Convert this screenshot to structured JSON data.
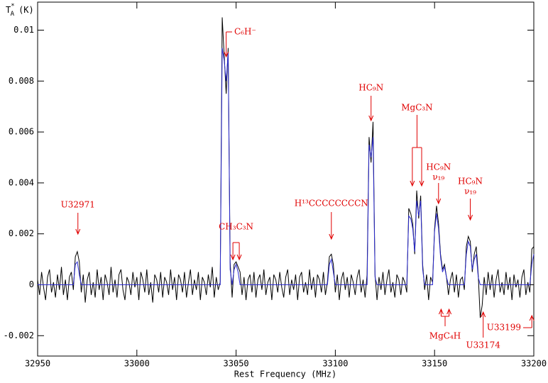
{
  "chart_data": {
    "type": "line",
    "xlabel": "Rest Frequency (MHz)",
    "ylabel": {
      "base": "T",
      "sub": "A",
      "sup": "*",
      "unit": "(K)"
    },
    "xlim": [
      32950,
      33200
    ],
    "xticks": [
      32950,
      33000,
      33050,
      33100,
      33150,
      33200
    ],
    "ylim": [
      -0.0028,
      0.0111
    ],
    "yticks": [
      -0.002,
      0,
      0.002,
      0.004,
      0.006,
      0.008,
      0.01
    ],
    "annotation_color": "#e00000",
    "x": [
      32950,
      32951,
      32952,
      32953,
      32954,
      32955,
      32956,
      32957,
      32958,
      32959,
      32960,
      32961,
      32962,
      32963,
      32964,
      32965,
      32966,
      32967,
      32968,
      32969,
      32970,
      32971,
      32972,
      32973,
      32974,
      32975,
      32976,
      32977,
      32978,
      32979,
      32980,
      32981,
      32982,
      32983,
      32984,
      32985,
      32986,
      32987,
      32988,
      32989,
      32990,
      32991,
      32992,
      32993,
      32994,
      32995,
      32996,
      32997,
      32998,
      32999,
      33000,
      33001,
      33002,
      33003,
      33004,
      33005,
      33006,
      33007,
      33008,
      33009,
      33010,
      33011,
      33012,
      33013,
      33014,
      33015,
      33016,
      33017,
      33018,
      33019,
      33020,
      33021,
      33022,
      33023,
      33024,
      33025,
      33026,
      33027,
      33028,
      33029,
      33030,
      33031,
      33032,
      33033,
      33034,
      33035,
      33036,
      33037,
      33038,
      33039,
      33040,
      33041,
      33042,
      33043,
      33044,
      33045,
      33046,
      33047,
      33048,
      33049,
      33050,
      33051,
      33052,
      33053,
      33054,
      33055,
      33056,
      33057,
      33058,
      33059,
      33060,
      33061,
      33062,
      33063,
      33064,
      33065,
      33066,
      33067,
      33068,
      33069,
      33070,
      33071,
      33072,
      33073,
      33074,
      33075,
      33076,
      33077,
      33078,
      33079,
      33080,
      33081,
      33082,
      33083,
      33084,
      33085,
      33086,
      33087,
      33088,
      33089,
      33090,
      33091,
      33092,
      33093,
      33094,
      33095,
      33096,
      33097,
      33098,
      33099,
      33100,
      33101,
      33102,
      33103,
      33104,
      33105,
      33106,
      33107,
      33108,
      33109,
      33110,
      33111,
      33112,
      33113,
      33114,
      33115,
      33116,
      33117,
      33118,
      33119,
      33120,
      33121,
      33122,
      33123,
      33124,
      33125,
      33126,
      33127,
      33128,
      33129,
      33130,
      33131,
      33132,
      33133,
      33134,
      33135,
      33136,
      33137,
      33138,
      33139,
      33140,
      33141,
      33142,
      33143,
      33144,
      33145,
      33146,
      33147,
      33148,
      33149,
      33150,
      33151,
      33152,
      33153,
      33154,
      33155,
      33156,
      33157,
      33158,
      33159,
      33160,
      33161,
      33162,
      33163,
      33164,
      33165,
      33166,
      33167,
      33168,
      33169,
      33170,
      33171,
      33172,
      33173,
      33174,
      33175,
      33176,
      33177,
      33178,
      33179,
      33180,
      33181,
      33182,
      33183,
      33184,
      33185,
      33186,
      33187,
      33188,
      33189,
      33190,
      33191,
      33192,
      33193,
      33194,
      33195,
      33196,
      33197,
      33198,
      33199,
      33200
    ],
    "series": [
      {
        "color": "#000000",
        "values": [
          0.0002,
          -0.0004,
          0.0005,
          -0.0001,
          -0.0006,
          0.0003,
          0.0006,
          -0.0003,
          0.0001,
          -0.0005,
          0.0004,
          -0.0002,
          0.0007,
          -0.0004,
          0.0002,
          -0.0006,
          0.0003,
          0.0005,
          -0.0002,
          0.0011,
          0.0013,
          0.0009,
          -0.0003,
          0.0004,
          -0.0007,
          0.0002,
          0.0005,
          -0.0004,
          0.0001,
          -0.0005,
          0.0006,
          -0.0002,
          0.0003,
          -0.0006,
          0.0004,
          0.0001,
          -0.0004,
          0.0007,
          -0.0003,
          0.0002,
          -0.0005,
          0.0004,
          0.0006,
          -0.0002,
          -0.0006,
          0.0003,
          0.0001,
          -0.0004,
          0.0005,
          -0.0001,
          0.0003,
          -0.0006,
          0.0005,
          0.0002,
          -0.0003,
          0.0006,
          -0.0004,
          0.0001,
          -0.0007,
          0.0004,
          0.0002,
          -0.0003,
          0.0005,
          -0.0005,
          0.0003,
          0.0001,
          -0.0004,
          0.0006,
          -0.0002,
          0.0003,
          -0.0006,
          0.0004,
          0.0002,
          -0.0003,
          0.0005,
          -0.0005,
          0.0001,
          0.0006,
          -0.0004,
          0.0002,
          -0.0002,
          0.0005,
          -0.0006,
          0.0003,
          0.0001,
          -0.0004,
          0.0004,
          -0.0001,
          0.0007,
          -0.0005,
          0.0003,
          -0.0002,
          0.0001,
          0.0105,
          0.009,
          0.0075,
          0.0093,
          0.0009,
          -0.0005,
          0.0008,
          0.0009,
          0.0007,
          0.0005,
          -0.0004,
          0.0003,
          -0.0006,
          0.0002,
          0.0004,
          -0.0003,
          0.0005,
          -0.0005,
          0.0002,
          0.0004,
          -0.0002,
          0.0006,
          -0.0004,
          0.0001,
          0.0003,
          -0.0006,
          0.0004,
          0.0002,
          -0.0003,
          0.0005,
          -0.0001,
          -0.0005,
          0.0003,
          0.0006,
          -0.0004,
          0.0002,
          -0.0002,
          0.0004,
          -0.0006,
          0.0003,
          0.0005,
          -0.0003,
          0.0001,
          -0.0004,
          0.0006,
          -0.0002,
          0.0003,
          -0.0005,
          0.0004,
          0.0002,
          -0.0003,
          0.0005,
          -0.0004,
          0.0001,
          0.0011,
          0.0012,
          0.0008,
          -0.0003,
          0.0004,
          -0.0006,
          0.0002,
          0.0005,
          -0.0002,
          0.0003,
          -0.0005,
          0.0004,
          0.0001,
          -0.0004,
          0.0003,
          0.0006,
          -0.0003,
          0.0002,
          -0.0005,
          0.0004,
          0.0058,
          0.0048,
          0.0064,
          0.0004,
          -0.0006,
          0.0003,
          -0.0002,
          0.0005,
          -0.0004,
          0.0002,
          0.0006,
          -0.0003,
          0.0001,
          -0.0005,
          0.0004,
          0.0002,
          -0.0004,
          0.0003,
          0.0001,
          -0.0003,
          0.003,
          0.0028,
          0.0024,
          0.0012,
          0.0037,
          0.0026,
          0.0035,
          0.0008,
          -0.0002,
          0.0004,
          -0.0006,
          0.0003,
          0.0001,
          0.0022,
          0.0031,
          0.0024,
          0.0012,
          0.0006,
          0.0008,
          0.0003,
          -0.0004,
          0.0002,
          0.0005,
          -0.0003,
          0.0004,
          -0.0005,
          0.0002,
          0.0003,
          -0.0002,
          0.0015,
          0.0019,
          0.0017,
          0.0005,
          0.0012,
          0.0015,
          0.0004,
          -0.0013,
          -0.0008,
          0.0003,
          -0.0004,
          0.0005,
          -0.0002,
          0.0004,
          -0.0005,
          0.0002,
          0.0006,
          -0.0003,
          0.0001,
          -0.0004,
          0.0005,
          -0.0002,
          0.0003,
          -0.0006,
          0.0004,
          -0.0001,
          0.0002,
          -0.0005,
          0.0003,
          0.0006,
          -0.0004,
          0.0001,
          -0.0003,
          0.0014,
          0.0015
        ]
      },
      {
        "color": "#2b2bd0",
        "values": [
          0,
          0,
          0,
          0,
          0,
          0,
          0,
          0,
          0,
          0,
          0,
          0,
          0,
          0,
          0,
          0,
          0,
          0,
          0,
          0.0008,
          0.0009,
          0.0004,
          0,
          0,
          0,
          0,
          0,
          0,
          0,
          0,
          0,
          0,
          0,
          0,
          0,
          0,
          0,
          0,
          0,
          0,
          0,
          0,
          0,
          0,
          0,
          0,
          0,
          0,
          0,
          0,
          0,
          0,
          0,
          0,
          0,
          0,
          0,
          0,
          0,
          0,
          0,
          0,
          0,
          0,
          0,
          0,
          0,
          0,
          0,
          0,
          0,
          0,
          0,
          0,
          0,
          0,
          0,
          0,
          0,
          0,
          0,
          0,
          0,
          0,
          0,
          0,
          0,
          0,
          0,
          0,
          0,
          0,
          0,
          0.0093,
          0.0088,
          0.008,
          0.0091,
          0.0006,
          0,
          0.0006,
          0.0008,
          0.0005,
          0,
          0,
          0,
          0,
          0,
          0,
          0,
          0,
          0,
          0,
          0,
          0,
          0,
          0,
          0,
          0,
          0,
          0,
          0,
          0,
          0,
          0,
          0,
          0,
          0,
          0,
          0,
          0,
          0,
          0,
          0,
          0,
          0,
          0,
          0,
          0,
          0,
          0,
          0,
          0,
          0,
          0,
          0,
          0,
          0,
          0.0008,
          0.001,
          0.0005,
          0,
          0,
          0,
          0,
          0,
          0,
          0,
          0,
          0,
          0,
          0,
          0,
          0,
          0,
          0,
          0,
          0,
          0.0055,
          0.005,
          0.0058,
          0.0003,
          0,
          0,
          0,
          0,
          0,
          0,
          0,
          0,
          0,
          0,
          0,
          0,
          0,
          0,
          0,
          0,
          0.0027,
          0.0026,
          0.0022,
          0.0013,
          0.0033,
          0.0027,
          0.0033,
          0.0006,
          0,
          0,
          0,
          0,
          0,
          0.0021,
          0.0028,
          0.0022,
          0.0011,
          0.0005,
          0.0007,
          0.0003,
          0,
          0,
          0,
          0,
          0,
          0,
          0,
          0,
          0,
          0.0012,
          0.0017,
          0.0015,
          0.0006,
          0.001,
          0.0012,
          0.0003,
          0,
          0,
          0,
          0,
          0,
          0,
          0,
          0,
          0,
          0,
          0,
          0,
          0,
          0,
          0,
          0,
          0,
          0,
          0,
          0,
          0,
          0,
          0,
          0,
          0,
          0,
          0.0008,
          0.0012
        ]
      }
    ],
    "annotations": [
      {
        "label": "U32971",
        "x": 32970.3
      },
      {
        "label": "C₆H⁻",
        "x": 33045
      },
      {
        "label": "CH₃C₃N",
        "x": [
          33048.4,
          33051.6
        ]
      },
      {
        "label": "H¹³CCCCCCCCN",
        "x": 33098
      },
      {
        "label": "HC₉N",
        "x": 33118
      },
      {
        "label": "MgC₃N",
        "x": [
          33138.8,
          33143.5
        ]
      },
      {
        "label": [
          "HC₉N",
          "ν₁₉"
        ],
        "x": 33152
      },
      {
        "label": [
          "HC₉N",
          "ν₁₉"
        ],
        "x": 33168
      },
      {
        "label": "MgC₄H",
        "x": [
          33153.3,
          33157.3
        ]
      },
      {
        "label": "U33174",
        "x": 33174.5
      },
      {
        "label": "U33199",
        "x": 33199
      }
    ]
  }
}
